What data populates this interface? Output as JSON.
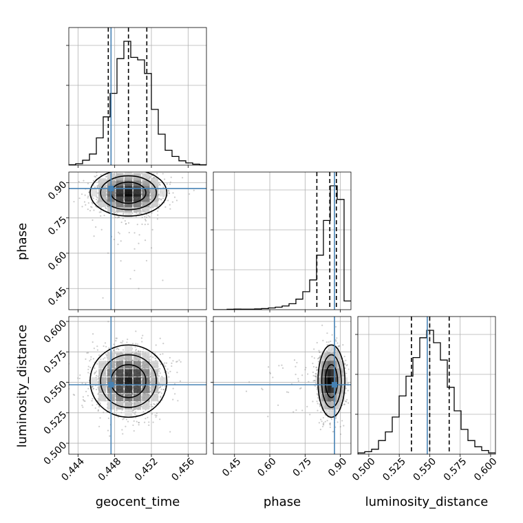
{
  "chart_data": {
    "type": "corner",
    "parameters": [
      "geocent_time",
      "phase",
      "luminosity_distance"
    ],
    "axis_labels": {
      "geocent_time": "geocent_time",
      "phase": "phase",
      "luminosity_distance": "luminosity_distance"
    },
    "ranges": {
      "geocent_time": [
        0.443,
        0.458
      ],
      "phase": [
        0.36,
        0.945
      ],
      "luminosity_distance": [
        0.491,
        0.604
      ]
    },
    "ticks": {
      "geocent_time": {
        "values": [
          0.444,
          0.448,
          0.452,
          0.456
        ],
        "labels": [
          "0.444",
          "0.448",
          "0.452",
          "0.456"
        ]
      },
      "phase": {
        "values": [
          0.45,
          0.6,
          0.75,
          0.9
        ],
        "labels": [
          "0.45",
          "0.60",
          "0.75",
          "0.90"
        ]
      },
      "luminosity_distance": {
        "values": [
          0.5,
          0.525,
          0.55,
          0.575,
          0.6
        ],
        "labels": [
          "0.500",
          "0.525",
          "0.550",
          "0.575",
          "0.600"
        ]
      }
    },
    "truth_values": {
      "geocent_time": 0.4476,
      "phase": 0.875,
      "luminosity_distance": 0.548
    },
    "quantiles": {
      "geocent_time": [
        0.4473,
        0.4495,
        0.4515
      ],
      "phase": [
        0.8,
        0.855,
        0.883
      ],
      "luminosity_distance": [
        0.535,
        0.55,
        0.566
      ]
    },
    "histograms_1d": {
      "geocent_time": [
        0.003,
        0.012,
        0.04,
        0.09,
        0.22,
        0.39,
        0.58,
        0.86,
        1.0,
        0.87,
        0.85,
        0.74,
        0.45,
        0.25,
        0.12,
        0.07,
        0.035,
        0.018,
        0.008,
        0.003
      ],
      "phase": [
        0.0,
        0.0,
        0.003,
        0.005,
        0.004,
        0.004,
        0.006,
        0.009,
        0.014,
        0.02,
        0.03,
        0.048,
        0.085,
        0.145,
        0.24,
        0.44,
        0.72,
        1.0,
        0.89,
        0.07
      ],
      "luminosity_distance": [
        0.01,
        0.02,
        0.04,
        0.11,
        0.18,
        0.3,
        0.47,
        0.63,
        0.78,
        0.94,
        1.0,
        0.9,
        0.76,
        0.54,
        0.35,
        0.2,
        0.11,
        0.06,
        0.03,
        0.01
      ]
    },
    "contours_2d": [
      {
        "x": "geocent_time",
        "y": "phase",
        "center": [
          0.4495,
          0.857
        ],
        "sigma": [
          0.0019,
          0.045
        ],
        "levels": [
          1.0,
          1.6,
          2.2
        ]
      },
      {
        "x": "geocent_time",
        "y": "luminosity_distance",
        "center": [
          0.4495,
          0.551
        ],
        "sigma": [
          0.0019,
          0.0135
        ],
        "levels": [
          1.0,
          1.6,
          2.2
        ]
      },
      {
        "x": "phase",
        "y": "luminosity_distance",
        "center": [
          0.862,
          0.551
        ],
        "sigma": [
          0.026,
          0.0135
        ],
        "levels": [
          1.0,
          1.6,
          2.2
        ]
      }
    ],
    "colors": {
      "hist": "#000000",
      "quantile": "#000000",
      "truth": "#4682b4",
      "grid": "#b0b0b0",
      "samples": "#8c8c8c"
    },
    "grid": true
  }
}
